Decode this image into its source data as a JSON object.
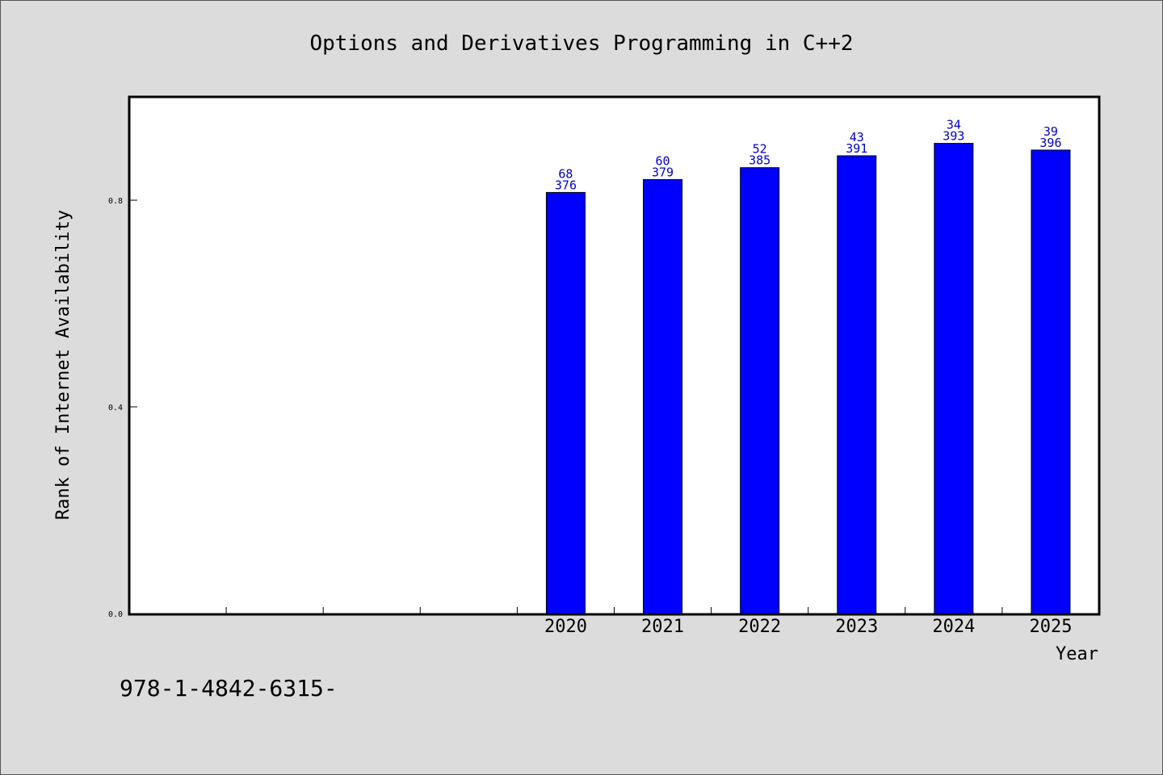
{
  "chart_data": {
    "type": "bar",
    "title": "Options and Derivatives Programming in C++2",
    "xlabel": "Year",
    "ylabel": "Rank of Internet Availability",
    "categories": [
      "",
      "",
      "",
      "",
      "2020",
      "2021",
      "2022",
      "2023",
      "2024",
      "2025"
    ],
    "values": [
      null,
      null,
      null,
      null,
      0.815,
      0.84,
      0.863,
      0.886,
      0.91,
      0.897
    ],
    "data_labels": [
      null,
      null,
      null,
      null,
      [
        "68",
        "376"
      ],
      [
        "60",
        "379"
      ],
      [
        "52",
        "385"
      ],
      [
        "43",
        "391"
      ],
      [
        "34",
        "393"
      ],
      [
        "39",
        "396"
      ]
    ],
    "y_ticks": [
      "0.0",
      "0.4",
      "0.8"
    ],
    "ylim": [
      0,
      1.0
    ],
    "grid": false,
    "legend": "none",
    "bar_color": "#0000ff",
    "label_color": "#0000cc"
  },
  "footer": {
    "text": "978-1-4842-6315-"
  }
}
